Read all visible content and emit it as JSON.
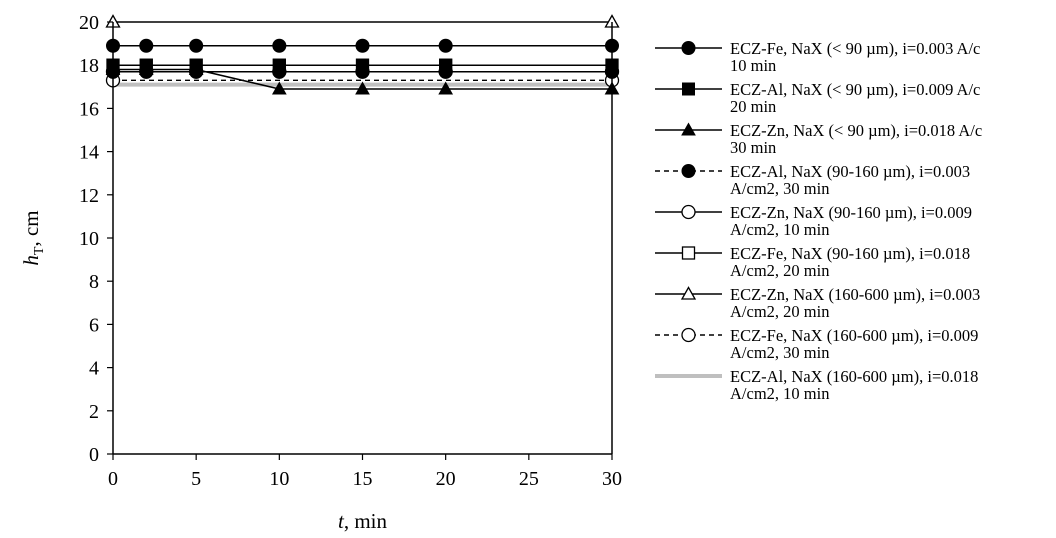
{
  "chart_data": {
    "type": "line",
    "xlabel": "t, min",
    "ylabel": "hT, cm",
    "xlim": [
      0,
      30
    ],
    "ylim": [
      0,
      20
    ],
    "xticks": [
      0,
      5,
      10,
      15,
      20,
      25,
      30
    ],
    "yticks": [
      0,
      2,
      4,
      6,
      8,
      10,
      12,
      14,
      16,
      18,
      20
    ],
    "grid": false,
    "legend_position": "right",
    "series": [
      {
        "name": "ECZ-Fe, NaX (< 90 µm), i=0.003 A/cm2, 10 min",
        "legend_lines": [
          "ECZ-Fe, NaX (< 90 µm), i=0.003 A/c",
          "10 min"
        ],
        "x": [
          0,
          2,
          5,
          10,
          15,
          20,
          30
        ],
        "y": [
          18.9,
          18.9,
          18.9,
          18.9,
          18.9,
          18.9,
          18.9
        ],
        "line": "solid",
        "marker": "circle-filled",
        "color": "#000000"
      },
      {
        "name": "ECZ-Al, NaX (< 90 µm), i=0.009 A/cm2, 20 min",
        "legend_lines": [
          "ECZ-Al, NaX (< 90 µm), i=0.009 A/c",
          "20 min"
        ],
        "x": [
          0,
          2,
          5,
          10,
          15,
          20,
          30
        ],
        "y": [
          18.0,
          18.0,
          18.0,
          18.0,
          18.0,
          18.0,
          18.0
        ],
        "line": "solid",
        "marker": "square-filled",
        "color": "#000000"
      },
      {
        "name": "ECZ-Zn, NaX (< 90 µm), i=0.018 A/cm2, 30 min",
        "legend_lines": [
          "ECZ-Zn, NaX (< 90 µm), i=0.018 A/c",
          "30 min"
        ],
        "x": [
          0,
          2,
          5,
          10,
          15,
          20,
          30
        ],
        "y": [
          17.8,
          17.8,
          17.8,
          16.9,
          16.9,
          16.9,
          16.9
        ],
        "line": "solid",
        "marker": "triangle-filled",
        "color": "#000000"
      },
      {
        "name": "ECZ-Al, NaX (90-160 µm), i=0.003 A/cm2, 30 min",
        "legend_lines": [
          "ECZ-Al, NaX (90-160 µm), i=0.003",
          "A/cm2, 30 min"
        ],
        "x": [
          0,
          2,
          5,
          10,
          15,
          20,
          30
        ],
        "y": [
          17.7,
          17.7,
          17.7,
          17.7,
          17.7,
          17.7,
          17.7
        ],
        "line": "dashed",
        "marker": "circle-filled",
        "color": "#000000"
      },
      {
        "name": "ECZ-Zn, NaX (90-160 µm), i=0.009 A/cm2, 10 min",
        "legend_lines": [
          "ECZ-Zn, NaX (90-160 µm), i=0.009",
          "A/cm2, 10 min"
        ],
        "x": [
          0,
          2,
          5,
          10,
          15,
          20,
          30
        ],
        "y": [
          17.7,
          17.7,
          17.7,
          17.7,
          17.7,
          17.7,
          17.7
        ],
        "line": "solid",
        "marker": "circle-open",
        "color": "#000000"
      },
      {
        "name": "ECZ-Fe, NaX (90-160 µm), i=0.018 A/cm2, 20 min",
        "legend_lines": [
          "ECZ-Fe, NaX (90-160 µm), i=0.018",
          "A/cm2, 20 min"
        ],
        "x": [
          0,
          2,
          5,
          10,
          15,
          20,
          30
        ],
        "y": [
          18.0,
          18.0,
          18.0,
          18.0,
          18.0,
          18.0,
          18.0
        ],
        "line": "solid",
        "marker": "square-open",
        "color": "#000000"
      },
      {
        "name": "ECZ-Zn, NaX (160-600 µm), i=0.003 A/cm2, 20 min",
        "legend_lines": [
          "ECZ-Zn, NaX (160-600 µm), i=0.003",
          "A/cm2, 20 min"
        ],
        "x": [
          0,
          30
        ],
        "y": [
          20.0,
          20.0
        ],
        "line": "solid",
        "marker": "triangle-open",
        "color": "#000000"
      },
      {
        "name": "ECZ-Fe, NaX (160-600 µm), i=0.009 A/cm2, 30 min",
        "legend_lines": [
          "ECZ-Fe, NaX (160-600 µm), i=0.009",
          "A/cm2, 30 min"
        ],
        "x": [
          0,
          30
        ],
        "y": [
          17.3,
          17.3
        ],
        "line": "dashed",
        "marker": "circle-open",
        "color": "#000000"
      },
      {
        "name": "ECZ-Al, NaX (160-600 µm), i=0.018 A/cm2, 10 min",
        "legend_lines": [
          "ECZ-Al, NaX (160-600 µm), i=0.018",
          "A/cm2, 10 min"
        ],
        "x": [
          0,
          30
        ],
        "y": [
          17.1,
          17.1
        ],
        "line": "solid-thick",
        "marker": "none",
        "color": "#bfbfbf"
      }
    ]
  }
}
